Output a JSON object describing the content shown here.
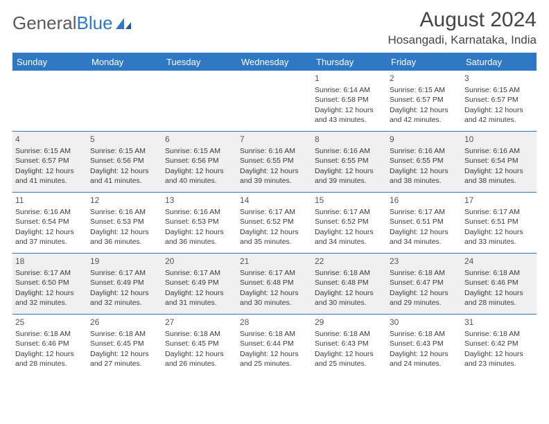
{
  "logo": {
    "text1": "General",
    "text2": "Blue"
  },
  "title": "August 2024",
  "location": "Hosangadi, Karnataka, India",
  "colors": {
    "header_bg": "#2f78c4",
    "header_text": "#ffffff",
    "alt_row_bg": "#f0f0f0",
    "border": "#2f78c4",
    "text": "#3a3a3a",
    "logo_gray": "#5a5a5a",
    "logo_blue": "#2f78c4"
  },
  "day_headers": [
    "Sunday",
    "Monday",
    "Tuesday",
    "Wednesday",
    "Thursday",
    "Friday",
    "Saturday"
  ],
  "weeks": [
    {
      "alt": false,
      "days": [
        null,
        null,
        null,
        null,
        {
          "n": "1",
          "sunrise": "6:14 AM",
          "sunset": "6:58 PM",
          "daylight": "12 hours and 43 minutes."
        },
        {
          "n": "2",
          "sunrise": "6:15 AM",
          "sunset": "6:57 PM",
          "daylight": "12 hours and 42 minutes."
        },
        {
          "n": "3",
          "sunrise": "6:15 AM",
          "sunset": "6:57 PM",
          "daylight": "12 hours and 42 minutes."
        }
      ]
    },
    {
      "alt": true,
      "days": [
        {
          "n": "4",
          "sunrise": "6:15 AM",
          "sunset": "6:57 PM",
          "daylight": "12 hours and 41 minutes."
        },
        {
          "n": "5",
          "sunrise": "6:15 AM",
          "sunset": "6:56 PM",
          "daylight": "12 hours and 41 minutes."
        },
        {
          "n": "6",
          "sunrise": "6:15 AM",
          "sunset": "6:56 PM",
          "daylight": "12 hours and 40 minutes."
        },
        {
          "n": "7",
          "sunrise": "6:16 AM",
          "sunset": "6:55 PM",
          "daylight": "12 hours and 39 minutes."
        },
        {
          "n": "8",
          "sunrise": "6:16 AM",
          "sunset": "6:55 PM",
          "daylight": "12 hours and 39 minutes."
        },
        {
          "n": "9",
          "sunrise": "6:16 AM",
          "sunset": "6:55 PM",
          "daylight": "12 hours and 38 minutes."
        },
        {
          "n": "10",
          "sunrise": "6:16 AM",
          "sunset": "6:54 PM",
          "daylight": "12 hours and 38 minutes."
        }
      ]
    },
    {
      "alt": false,
      "days": [
        {
          "n": "11",
          "sunrise": "6:16 AM",
          "sunset": "6:54 PM",
          "daylight": "12 hours and 37 minutes."
        },
        {
          "n": "12",
          "sunrise": "6:16 AM",
          "sunset": "6:53 PM",
          "daylight": "12 hours and 36 minutes."
        },
        {
          "n": "13",
          "sunrise": "6:16 AM",
          "sunset": "6:53 PM",
          "daylight": "12 hours and 36 minutes."
        },
        {
          "n": "14",
          "sunrise": "6:17 AM",
          "sunset": "6:52 PM",
          "daylight": "12 hours and 35 minutes."
        },
        {
          "n": "15",
          "sunrise": "6:17 AM",
          "sunset": "6:52 PM",
          "daylight": "12 hours and 34 minutes."
        },
        {
          "n": "16",
          "sunrise": "6:17 AM",
          "sunset": "6:51 PM",
          "daylight": "12 hours and 34 minutes."
        },
        {
          "n": "17",
          "sunrise": "6:17 AM",
          "sunset": "6:51 PM",
          "daylight": "12 hours and 33 minutes."
        }
      ]
    },
    {
      "alt": true,
      "days": [
        {
          "n": "18",
          "sunrise": "6:17 AM",
          "sunset": "6:50 PM",
          "daylight": "12 hours and 32 minutes."
        },
        {
          "n": "19",
          "sunrise": "6:17 AM",
          "sunset": "6:49 PM",
          "daylight": "12 hours and 32 minutes."
        },
        {
          "n": "20",
          "sunrise": "6:17 AM",
          "sunset": "6:49 PM",
          "daylight": "12 hours and 31 minutes."
        },
        {
          "n": "21",
          "sunrise": "6:17 AM",
          "sunset": "6:48 PM",
          "daylight": "12 hours and 30 minutes."
        },
        {
          "n": "22",
          "sunrise": "6:18 AM",
          "sunset": "6:48 PM",
          "daylight": "12 hours and 30 minutes."
        },
        {
          "n": "23",
          "sunrise": "6:18 AM",
          "sunset": "6:47 PM",
          "daylight": "12 hours and 29 minutes."
        },
        {
          "n": "24",
          "sunrise": "6:18 AM",
          "sunset": "6:46 PM",
          "daylight": "12 hours and 28 minutes."
        }
      ]
    },
    {
      "alt": false,
      "days": [
        {
          "n": "25",
          "sunrise": "6:18 AM",
          "sunset": "6:46 PM",
          "daylight": "12 hours and 28 minutes."
        },
        {
          "n": "26",
          "sunrise": "6:18 AM",
          "sunset": "6:45 PM",
          "daylight": "12 hours and 27 minutes."
        },
        {
          "n": "27",
          "sunrise": "6:18 AM",
          "sunset": "6:45 PM",
          "daylight": "12 hours and 26 minutes."
        },
        {
          "n": "28",
          "sunrise": "6:18 AM",
          "sunset": "6:44 PM",
          "daylight": "12 hours and 25 minutes."
        },
        {
          "n": "29",
          "sunrise": "6:18 AM",
          "sunset": "6:43 PM",
          "daylight": "12 hours and 25 minutes."
        },
        {
          "n": "30",
          "sunrise": "6:18 AM",
          "sunset": "6:43 PM",
          "daylight": "12 hours and 24 minutes."
        },
        {
          "n": "31",
          "sunrise": "6:18 AM",
          "sunset": "6:42 PM",
          "daylight": "12 hours and 23 minutes."
        }
      ]
    }
  ],
  "labels": {
    "sunrise": "Sunrise:",
    "sunset": "Sunset:",
    "daylight": "Daylight:"
  }
}
